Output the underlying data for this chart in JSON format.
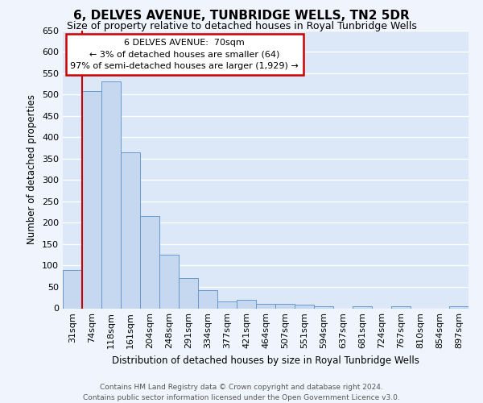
{
  "title": "6, DELVES AVENUE, TUNBRIDGE WELLS, TN2 5DR",
  "subtitle": "Size of property relative to detached houses in Royal Tunbridge Wells",
  "xlabel": "Distribution of detached houses by size in Royal Tunbridge Wells",
  "ylabel": "Number of detached properties",
  "footer_line1": "Contains HM Land Registry data © Crown copyright and database right 2024.",
  "footer_line2": "Contains public sector information licensed under the Open Government Licence v3.0.",
  "bin_labels": [
    "31sqm",
    "74sqm",
    "118sqm",
    "161sqm",
    "204sqm",
    "248sqm",
    "291sqm",
    "334sqm",
    "377sqm",
    "421sqm",
    "464sqm",
    "507sqm",
    "551sqm",
    "594sqm",
    "637sqm",
    "681sqm",
    "724sqm",
    "767sqm",
    "810sqm",
    "854sqm",
    "897sqm"
  ],
  "bar_values": [
    90,
    507,
    530,
    365,
    215,
    126,
    70,
    42,
    16,
    19,
    11,
    11,
    9,
    5,
    0,
    5,
    0,
    4,
    0,
    0,
    4
  ],
  "bar_color": "#c5d8f0",
  "bar_edge_color": "#6699cc",
  "plot_bg_color": "#dce8f8",
  "fig_bg_color": "#f0f4fc",
  "grid_color": "#ffffff",
  "annotation_line1": "6 DELVES AVENUE:  70sqm",
  "annotation_line2": "← 3% of detached houses are smaller (64)",
  "annotation_line3": "97% of semi-detached houses are larger (1,929) →",
  "annotation_box_facecolor": "#ffffff",
  "annotation_box_edgecolor": "#cc0000",
  "marker_line_color": "#cc0000",
  "ylim": [
    0,
    650
  ],
  "yticks": [
    0,
    50,
    100,
    150,
    200,
    250,
    300,
    350,
    400,
    450,
    500,
    550,
    600,
    650
  ]
}
